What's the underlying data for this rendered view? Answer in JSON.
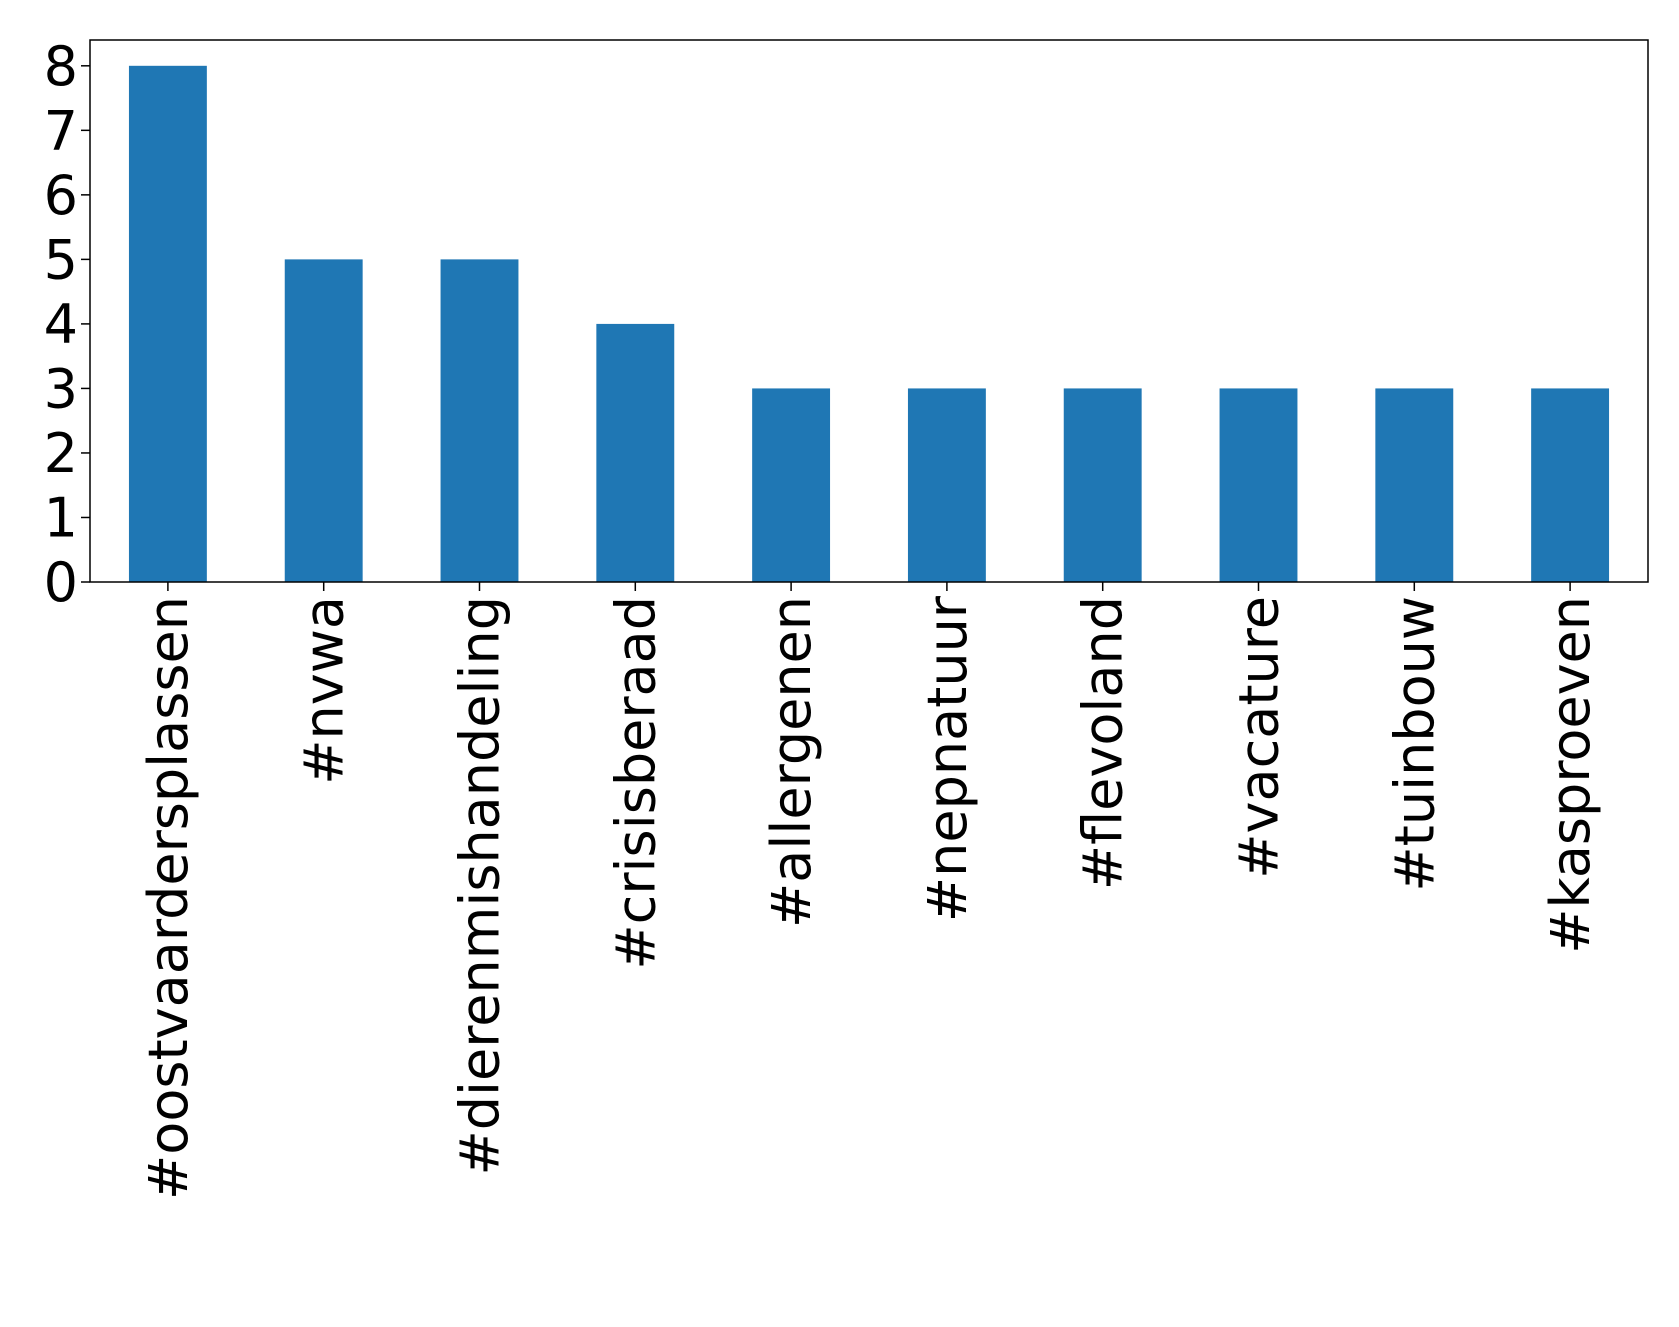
{
  "chart_data": {
    "type": "bar",
    "categories": [
      "#oostvaardersplassen",
      "#nvwa",
      "#dierenmishandeling",
      "#crisisberaad",
      "#allergenen",
      "#nepnatuur",
      "#flevoland",
      "#vacature",
      "#tuinbouw",
      "#kasproeven"
    ],
    "values": [
      8,
      5,
      5,
      4,
      3,
      3,
      3,
      3,
      3,
      3
    ],
    "color": "#1f77b4",
    "ylim": [
      0,
      8.4
    ],
    "yticks": [
      0,
      1,
      2,
      3,
      4,
      5,
      6,
      7,
      8
    ],
    "grid": false
  }
}
